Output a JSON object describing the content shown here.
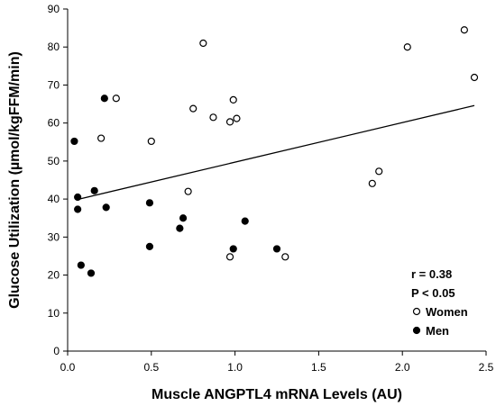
{
  "chart_data": {
    "type": "scatter",
    "xlabel": "Muscle ANGPTL4 mRNA Levels (AU)",
    "ylabel": "Glucose Utilization (µmol/kgFFM/min)",
    "xlim": [
      0,
      2.5
    ],
    "ylim": [
      0,
      90
    ],
    "xticks": [
      "0.0",
      "0.5",
      "1.0",
      "1.5",
      "2.0",
      "2.5"
    ],
    "yticks": [
      "0",
      "10",
      "20",
      "30",
      "40",
      "50",
      "60",
      "70",
      "80",
      "90"
    ],
    "grid": false,
    "legend_position": "bottom-right",
    "annotations": [
      "r = 0.38",
      "P < 0.05"
    ],
    "series": [
      {
        "name": "Women",
        "marker": "open-circle",
        "points": [
          [
            0.2,
            56.0
          ],
          [
            0.29,
            66.5
          ],
          [
            0.5,
            55.2
          ],
          [
            0.72,
            42.0
          ],
          [
            0.75,
            63.8
          ],
          [
            0.81,
            81.0
          ],
          [
            0.87,
            61.5
          ],
          [
            0.97,
            60.3
          ],
          [
            0.97,
            24.8
          ],
          [
            0.99,
            66.1
          ],
          [
            1.01,
            61.2
          ],
          [
            1.3,
            24.8
          ],
          [
            1.82,
            44.1
          ],
          [
            1.86,
            47.3
          ],
          [
            2.03,
            80.0
          ],
          [
            2.37,
            84.5
          ],
          [
            2.43,
            72.0
          ]
        ]
      },
      {
        "name": "Men",
        "marker": "filled-circle",
        "points": [
          [
            0.04,
            55.2
          ],
          [
            0.06,
            40.5
          ],
          [
            0.06,
            37.3
          ],
          [
            0.08,
            22.6
          ],
          [
            0.14,
            20.5
          ],
          [
            0.16,
            42.2
          ],
          [
            0.22,
            66.5
          ],
          [
            0.23,
            37.8
          ],
          [
            0.49,
            39.0
          ],
          [
            0.49,
            27.5
          ],
          [
            0.67,
            32.3
          ],
          [
            0.69,
            35.0
          ],
          [
            0.99,
            26.9
          ],
          [
            1.06,
            34.2
          ],
          [
            1.25,
            26.9
          ]
        ]
      }
    ],
    "trendline": {
      "x": [
        0.05,
        2.43
      ],
      "y": [
        39.8,
        64.6
      ]
    }
  }
}
